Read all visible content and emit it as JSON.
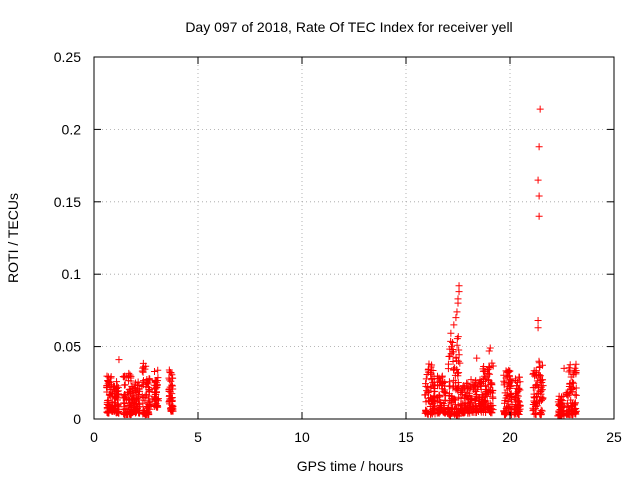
{
  "chart_data": {
    "type": "scatter",
    "title": "Day 097 of 2018, Rate Of TEC Index for receiver yell",
    "xlabel": "GPS time / hours",
    "ylabel": "ROTI / TECUs",
    "xlim": [
      0,
      25
    ],
    "ylim": [
      0,
      0.25
    ],
    "xticks": [
      0,
      5,
      10,
      15,
      20,
      25
    ],
    "xtick_labels": [
      "0",
      "5",
      "10",
      "15",
      "20",
      "25"
    ],
    "yticks": [
      0,
      0.05,
      0.1,
      0.15,
      0.2,
      0.25
    ],
    "ytick_labels": [
      "0",
      "0.05",
      "0.1",
      "0.15",
      "0.2",
      "0.25"
    ],
    "grid": true,
    "marker": "+",
    "marker_color": "#ff0000",
    "clusters": [
      {
        "x": [
          0.6,
          0.9
        ],
        "y": [
          0.004,
          0.032
        ]
      },
      {
        "x": [
          0.9,
          1.2
        ],
        "y": [
          0.004,
          0.026
        ]
      },
      {
        "x": [
          1.4,
          1.8
        ],
        "y": [
          0.003,
          0.033
        ]
      },
      {
        "x": [
          1.8,
          2.2
        ],
        "y": [
          0.004,
          0.028
        ]
      },
      {
        "x": [
          2.3,
          2.7
        ],
        "y": [
          0.003,
          0.039
        ]
      },
      {
        "x": [
          2.9,
          3.1
        ],
        "y": [
          0.008,
          0.035
        ]
      },
      {
        "x": [
          3.6,
          3.8
        ],
        "y": [
          0.005,
          0.036
        ]
      },
      {
        "x": [
          15.9,
          16.4
        ],
        "y": [
          0.003,
          0.038
        ]
      },
      {
        "x": [
          16.5,
          16.9
        ],
        "y": [
          0.004,
          0.03
        ]
      },
      {
        "x": [
          17.0,
          17.6
        ],
        "y": [
          0.002,
          0.06
        ]
      },
      {
        "x": [
          17.6,
          18.6
        ],
        "y": [
          0.004,
          0.028
        ]
      },
      {
        "x": [
          18.6,
          19.2
        ],
        "y": [
          0.004,
          0.04
        ]
      },
      {
        "x": [
          19.7,
          20.1
        ],
        "y": [
          0.003,
          0.034
        ]
      },
      {
        "x": [
          20.2,
          20.5
        ],
        "y": [
          0.003,
          0.03
        ]
      },
      {
        "x": [
          21.1,
          21.6
        ],
        "y": [
          0.003,
          0.04
        ]
      },
      {
        "x": [
          22.3,
          22.6
        ],
        "y": [
          0.002,
          0.016
        ]
      },
      {
        "x": [
          22.7,
          23.2
        ],
        "y": [
          0.003,
          0.038
        ]
      }
    ],
    "outliers": [
      {
        "x": 1.2,
        "y": 0.041
      },
      {
        "x": 17.3,
        "y": 0.065
      },
      {
        "x": 17.4,
        "y": 0.07
      },
      {
        "x": 17.45,
        "y": 0.074
      },
      {
        "x": 17.5,
        "y": 0.08
      },
      {
        "x": 17.5,
        "y": 0.083
      },
      {
        "x": 17.55,
        "y": 0.088
      },
      {
        "x": 17.55,
        "y": 0.092
      },
      {
        "x": 18.4,
        "y": 0.042
      },
      {
        "x": 19.0,
        "y": 0.047
      },
      {
        "x": 19.05,
        "y": 0.049
      },
      {
        "x": 21.35,
        "y": 0.063
      },
      {
        "x": 21.35,
        "y": 0.068
      },
      {
        "x": 21.4,
        "y": 0.14
      },
      {
        "x": 21.4,
        "y": 0.154
      },
      {
        "x": 21.35,
        "y": 0.165
      },
      {
        "x": 21.4,
        "y": 0.188
      },
      {
        "x": 21.45,
        "y": 0.214
      },
      {
        "x": 22.6,
        "y": 0.035
      }
    ]
  }
}
